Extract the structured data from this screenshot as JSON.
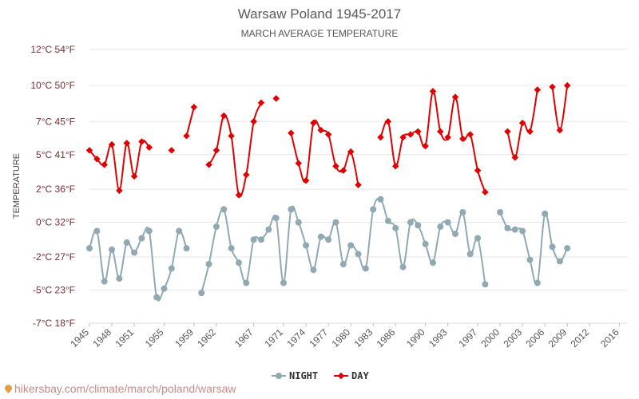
{
  "chart_data": {
    "type": "line",
    "title": "Warsaw Poland 1945-2017",
    "subtitle": "MARCH AVERAGE TEMPERATURE",
    "ylabel": "TEMPERATURE",
    "xlabel": "",
    "ylim": [
      -7,
      12
    ],
    "xlim": [
      1945,
      2017
    ],
    "y_ticks": [
      {
        "value": 12,
        "label": "12°C 54°F"
      },
      {
        "value": 9.5,
        "label": "10°C 50°F"
      },
      {
        "value": 7,
        "label": "7°C 45°F"
      },
      {
        "value": 4.7,
        "label": "5°C 41°F"
      },
      {
        "value": 2.3,
        "label": "2°C 36°F"
      },
      {
        "value": 0,
        "label": "0°C 32°F"
      },
      {
        "value": -2.4,
        "label": "-2°C 27°F"
      },
      {
        "value": -4.7,
        "label": "-5°C 23°F"
      },
      {
        "value": -7,
        "label": "-7°C 18°F"
      }
    ],
    "x_ticks": [
      {
        "value": 1945,
        "label": "1945"
      },
      {
        "value": 1948,
        "label": "1948"
      },
      {
        "value": 1951,
        "label": "1951"
      },
      {
        "value": 1955,
        "label": "1955"
      },
      {
        "value": 1959,
        "label": "1959"
      },
      {
        "value": 1962,
        "label": "1962"
      },
      {
        "value": 1967,
        "label": "1967"
      },
      {
        "value": 1971,
        "label": "1971"
      },
      {
        "value": 1974,
        "label": "1974"
      },
      {
        "value": 1977,
        "label": "1977"
      },
      {
        "value": 1980,
        "label": "1980"
      },
      {
        "value": 1983,
        "label": "1983"
      },
      {
        "value": 1986,
        "label": "1986"
      },
      {
        "value": 1990,
        "label": "1990"
      },
      {
        "value": 1993,
        "label": "1993"
      },
      {
        "value": 1997,
        "label": "1997"
      },
      {
        "value": 2000,
        "label": "2000"
      },
      {
        "value": 2003,
        "label": "2003"
      },
      {
        "value": 2006,
        "label": "2006"
      },
      {
        "value": 2009,
        "label": "2009"
      },
      {
        "value": 2012,
        "label": "2012"
      },
      {
        "value": 2016,
        "label": "2016"
      }
    ],
    "grid": true,
    "legend_position": "bottom-center",
    "series": [
      {
        "name": "NIGHT",
        "color": "#90a9b3",
        "marker": "circle",
        "values": [
          -1.8,
          -0.6,
          -4.1,
          -1.9,
          -3.9,
          -1.4,
          -2.1,
          -1.1,
          -0.6,
          -5.2,
          -4.6,
          -3.2,
          -0.6,
          -1.8,
          null,
          -4.9,
          -2.9,
          -0.3,
          0.9,
          -1.8,
          -2.8,
          -4.2,
          -1.2,
          -1.2,
          -0.5,
          0.3,
          -4.2,
          0.9,
          0.0,
          -1.6,
          -3.3,
          -1.0,
          -1.2,
          0.0,
          -2.9,
          -1.6,
          -2.2,
          -3.2,
          0.9,
          1.6,
          0.1,
          -0.4,
          -3.1,
          0.0,
          -0.2,
          -1.5,
          -2.8,
          -0.3,
          0.0,
          -0.8,
          0.7,
          -2.2,
          -1.1,
          -4.3,
          null,
          0.7,
          -0.4,
          -0.5,
          -0.6,
          -2.6,
          -4.2,
          0.6,
          -1.7,
          -2.7,
          -1.8
        ],
        "x": [
          1945,
          1946,
          1947,
          1948,
          1949,
          1950,
          1951,
          1952,
          1953,
          1954,
          1955,
          1956,
          1957,
          1958,
          1959,
          1960,
          1961,
          1962,
          1963,
          1964,
          1965,
          1966,
          1967,
          1968,
          1969,
          1970,
          1971,
          1972,
          1973,
          1974,
          1975,
          1976,
          1977,
          1978,
          1979,
          1980,
          1981,
          1982,
          1983,
          1984,
          1985,
          1986,
          1987,
          1988,
          1989,
          1990,
          1991,
          1992,
          1993,
          1994,
          1995,
          1996,
          1997,
          1998,
          1999,
          2000,
          2001,
          2002,
          2003,
          2004,
          2005,
          2006,
          2007,
          2008,
          2009
        ]
      },
      {
        "name": "DAY",
        "color": "#e00000",
        "marker": "diamond",
        "values": [
          5.0,
          4.4,
          4.0,
          5.4,
          2.2,
          5.5,
          3.2,
          5.6,
          5.2,
          null,
          null,
          5.0,
          null,
          6.0,
          8.0,
          null,
          4.0,
          5.0,
          7.4,
          6.0,
          1.9,
          3.3,
          7.0,
          8.3,
          null,
          8.6,
          null,
          6.2,
          4.1,
          2.9,
          6.9,
          6.4,
          6.1,
          3.9,
          3.6,
          4.9,
          2.6,
          null,
          null,
          5.9,
          7.0,
          3.9,
          5.9,
          6.1,
          6.3,
          5.3,
          9.1,
          6.3,
          5.9,
          8.7,
          5.8,
          6.1,
          3.6,
          2.1,
          null,
          null,
          6.3,
          4.5,
          6.9,
          6.3,
          9.2,
          null,
          9.4,
          6.4,
          9.5
        ],
        "x": [
          1945,
          1946,
          1947,
          1948,
          1949,
          1950,
          1951,
          1952,
          1953,
          1954,
          1955,
          1956,
          1957,
          1958,
          1959,
          1960,
          1961,
          1962,
          1963,
          1964,
          1965,
          1966,
          1967,
          1968,
          1969,
          1970,
          1971,
          1972,
          1973,
          1974,
          1975,
          1976,
          1977,
          1978,
          1979,
          1980,
          1981,
          1982,
          1983,
          1984,
          1985,
          1986,
          1987,
          1988,
          1989,
          1990,
          1991,
          1992,
          1993,
          1994,
          1995,
          1996,
          1997,
          1998,
          1999,
          2000,
          2001,
          2002,
          2003,
          2004,
          2005,
          2006,
          2007,
          2008,
          2009
        ]
      }
    ]
  },
  "watermark": "hikersbay.com/climate/march/poland/warsaw",
  "icons": {
    "watermark": "location-pin-icon"
  }
}
